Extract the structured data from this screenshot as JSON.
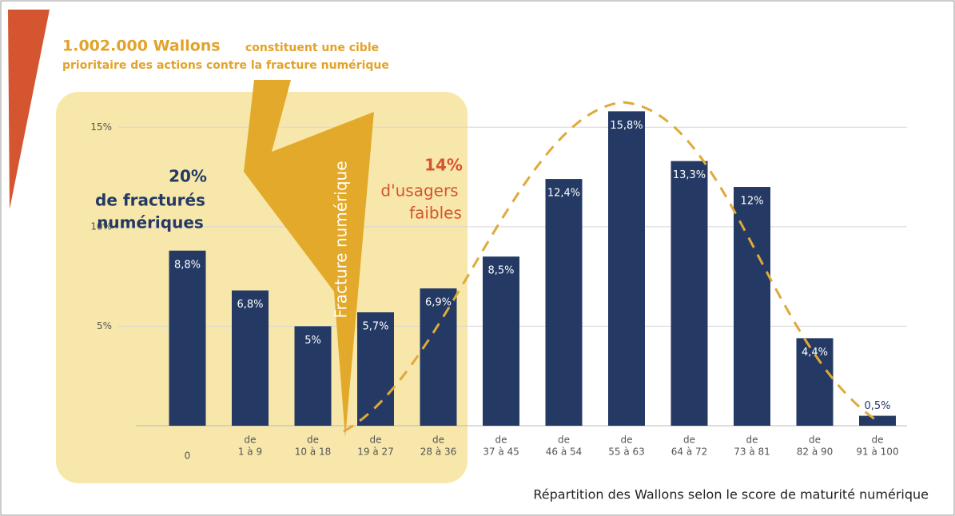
{
  "chart_data": {
    "type": "bar",
    "title": {
      "highlight": "1.002.000 Wallons",
      "lines": [
        "constituent une cible",
        "prioritaire des actions contre la fracture numérique"
      ]
    },
    "categories": [
      [
        "0"
      ],
      [
        "de",
        "1 à 9"
      ],
      [
        "de",
        "10 à 18"
      ],
      [
        "de",
        "19 à 27"
      ],
      [
        "de",
        "28 à 36"
      ],
      [
        "de",
        "37 à 45"
      ],
      [
        "de",
        "46 à 54"
      ],
      [
        "de",
        "55 à 63"
      ],
      [
        "de",
        "64 à 72"
      ],
      [
        "de",
        "73 à 81"
      ],
      [
        "de",
        "82 à 90"
      ],
      [
        "de",
        "91 à 100"
      ]
    ],
    "values": [
      8.8,
      6.8,
      5,
      5.7,
      6.9,
      8.5,
      12.4,
      15.8,
      13.3,
      12,
      4.4,
      0.5
    ],
    "value_labels": [
      "8,8%",
      "6,8%",
      "5%",
      "5,7%",
      "6,9%",
      "8,5%",
      "12,4%",
      "15,8%",
      "13,3%",
      "12%",
      "4,4%",
      "0,5%"
    ],
    "color": "#243a64",
    "ylim": [
      0,
      17.5
    ],
    "yticks": [
      {
        "value": 5,
        "label": "5%"
      },
      {
        "value": 10,
        "label": "10%"
      },
      {
        "value": 15,
        "label": "15%"
      }
    ],
    "grid": true,
    "fractured": {
      "percent": "20%",
      "lines": [
        "de fracturés",
        "numériques"
      ]
    },
    "weak": {
      "percent": "14%",
      "lines": [
        "d'usagers",
        "faibles"
      ]
    },
    "fracture_label": "Fracture numérique",
    "x_label": "Répartition des Wallons selon le score de maturité numérique"
  }
}
